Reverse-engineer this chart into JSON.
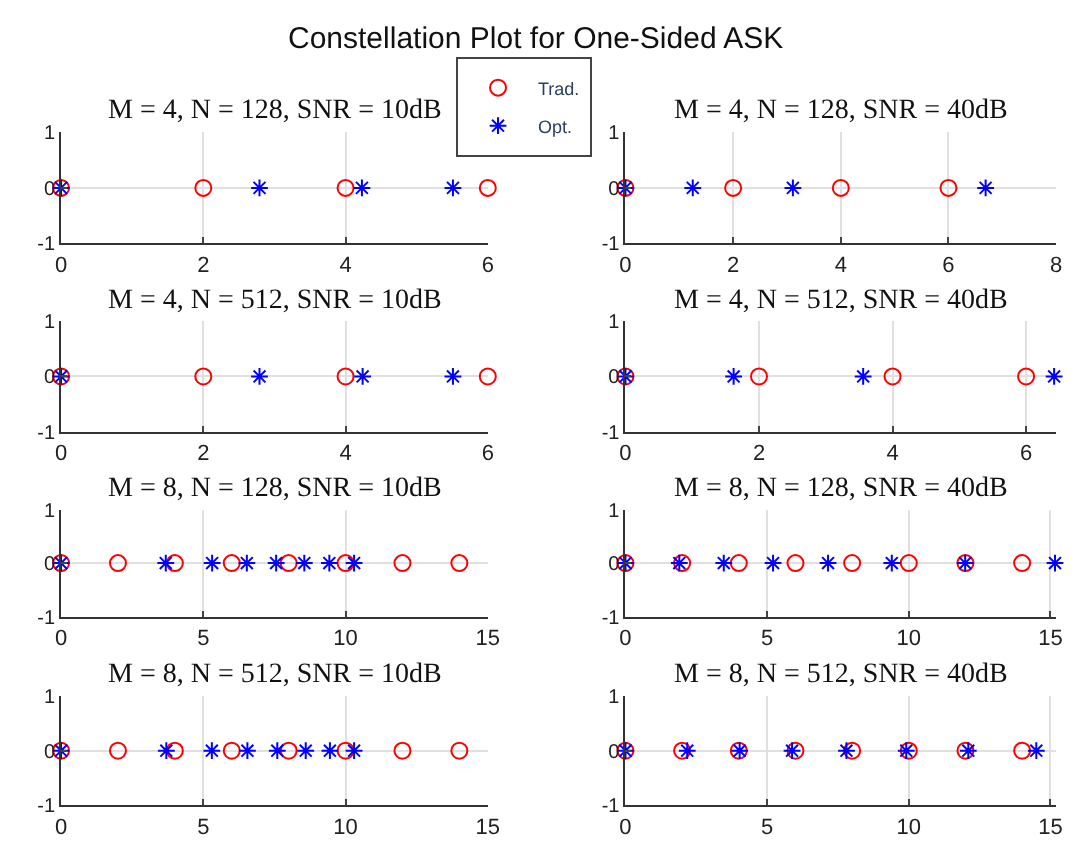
{
  "chart_data": [
    {
      "type": "scatter",
      "title": "M = 4, N = 128, SNR = 10dB",
      "annotations": [
        "Constellation Plot for One-Sided ASK"
      ],
      "xlim": [
        0,
        6
      ],
      "xticks": [
        0,
        2,
        4,
        6
      ],
      "ylim": [
        -1,
        1
      ],
      "yticks": [
        -1,
        0,
        1
      ],
      "grid": true,
      "legend": "top",
      "series": [
        {
          "name": "Trad.",
          "color": "#ff0000",
          "marker": "circle",
          "x": [
            0,
            2,
            4,
            6
          ],
          "values": [
            0,
            0,
            0,
            0
          ]
        },
        {
          "name": "Opt.",
          "color": "#0000ff",
          "marker": "cross",
          "x": [
            0,
            2.79,
            4.23,
            5.51
          ],
          "values": [
            0,
            0,
            0,
            0
          ]
        }
      ]
    },
    {
      "type": "scatter",
      "title": "M = 4, N = 128, SNR = 40dB",
      "xlim": [
        0,
        8
      ],
      "xticks": [
        0,
        2,
        4,
        6,
        8
      ],
      "ylim": [
        -1,
        1
      ],
      "yticks": [
        -1,
        0,
        1
      ],
      "grid": true,
      "series": [
        {
          "color": "#ff0000",
          "marker": "circle",
          "x": [
            0,
            2,
            4,
            6
          ],
          "values": [
            0,
            0,
            0,
            0
          ]
        },
        {
          "color": "#0000ff",
          "marker": "cross",
          "x": [
            0,
            1.25,
            3.11,
            6.69
          ],
          "values": [
            0,
            0,
            0,
            0
          ]
        }
      ]
    },
    {
      "type": "scatter",
      "title": "M = 4, N = 512, SNR = 10dB",
      "xlim": [
        0,
        6
      ],
      "xticks": [
        0,
        2,
        4,
        6
      ],
      "ylim": [
        -1,
        1
      ],
      "yticks": [
        -1,
        0,
        1
      ],
      "grid": true,
      "series": [
        {
          "color": "#ff0000",
          "marker": "circle",
          "x": [
            0,
            2,
            4,
            6
          ],
          "values": [
            0,
            0,
            0,
            0
          ]
        },
        {
          "color": "#0000ff",
          "marker": "cross",
          "x": [
            0,
            2.79,
            4.24,
            5.51
          ],
          "values": [
            0,
            0,
            0,
            0
          ]
        }
      ]
    },
    {
      "type": "scatter",
      "title": "M = 4, N = 512, SNR = 40dB",
      "xlim": [
        0,
        6.45
      ],
      "xticks": [
        0,
        2,
        4,
        6
      ],
      "ylim": [
        -1,
        1
      ],
      "yticks": [
        -1,
        0,
        1
      ],
      "grid": true,
      "series": [
        {
          "color": "#ff0000",
          "marker": "circle",
          "x": [
            0,
            2,
            4,
            6
          ],
          "values": [
            0,
            0,
            0,
            0
          ]
        },
        {
          "color": "#0000ff",
          "marker": "cross",
          "x": [
            0,
            1.62,
            3.56,
            6.42
          ],
          "values": [
            0,
            0,
            0,
            0
          ]
        }
      ]
    },
    {
      "type": "scatter",
      "title": "M = 8, N = 128, SNR = 10dB",
      "xlim": [
        0,
        15
      ],
      "xticks": [
        0,
        5,
        10,
        15
      ],
      "ylim": [
        -1,
        1
      ],
      "yticks": [
        -1,
        0,
        1
      ],
      "grid": true,
      "series": [
        {
          "color": "#ff0000",
          "marker": "circle",
          "x": [
            0,
            2,
            4,
            6,
            8,
            10,
            12,
            14
          ],
          "values": [
            0,
            0,
            0,
            0,
            0,
            0,
            0,
            0
          ]
        },
        {
          "color": "#0000ff",
          "marker": "cross",
          "x": [
            0,
            3.68,
            5.31,
            6.53,
            7.56,
            8.55,
            9.43,
            10.3
          ],
          "values": [
            0,
            0,
            0,
            0,
            0,
            0,
            0,
            0
          ]
        }
      ]
    },
    {
      "type": "scatter",
      "title": "M = 8, N = 128, SNR = 40dB",
      "xlim": [
        0,
        15.2
      ],
      "xticks": [
        0,
        5,
        10,
        15
      ],
      "ylim": [
        -1,
        1
      ],
      "yticks": [
        -1,
        0,
        1
      ],
      "grid": true,
      "series": [
        {
          "color": "#ff0000",
          "marker": "circle",
          "x": [
            0,
            2,
            4,
            6,
            8,
            10,
            12,
            14
          ],
          "values": [
            0,
            0,
            0,
            0,
            0,
            0,
            0,
            0
          ]
        },
        {
          "color": "#0000ff",
          "marker": "cross",
          "x": [
            0,
            1.9,
            3.47,
            5.21,
            7.15,
            9.4,
            11.99,
            15.16
          ],
          "values": [
            0,
            0,
            0,
            0,
            0,
            0,
            0,
            0
          ]
        }
      ]
    },
    {
      "type": "scatter",
      "title": "M = 8, N = 512, SNR = 10dB",
      "xlim": [
        0,
        15
      ],
      "xticks": [
        0,
        5,
        10,
        15
      ],
      "ylim": [
        -1,
        1
      ],
      "yticks": [
        -1,
        0,
        1
      ],
      "grid": true,
      "series": [
        {
          "color": "#ff0000",
          "marker": "circle",
          "x": [
            0,
            2,
            4,
            6,
            8,
            10,
            12,
            14
          ],
          "values": [
            0,
            0,
            0,
            0,
            0,
            0,
            0,
            0
          ]
        },
        {
          "color": "#0000ff",
          "marker": "cross",
          "x": [
            0,
            3.7,
            5.3,
            6.55,
            7.6,
            8.6,
            9.45,
            10.3
          ],
          "values": [
            0,
            0,
            0,
            0,
            0,
            0,
            0,
            0
          ]
        }
      ]
    },
    {
      "type": "scatter",
      "title": "M = 8, N = 512, SNR = 40dB",
      "xlim": [
        0,
        15.2
      ],
      "xticks": [
        0,
        5,
        10,
        15
      ],
      "ylim": [
        -1,
        1
      ],
      "yticks": [
        -1,
        0,
        1
      ],
      "grid": true,
      "series": [
        {
          "color": "#ff0000",
          "marker": "circle",
          "x": [
            0,
            2,
            4,
            6,
            8,
            10,
            12,
            14
          ],
          "values": [
            0,
            0,
            0,
            0,
            0,
            0,
            0,
            0
          ]
        },
        {
          "color": "#0000ff",
          "marker": "cross",
          "x": [
            0,
            2.18,
            4.03,
            5.88,
            7.8,
            9.91,
            12.1,
            14.5
          ],
          "values": [
            0,
            0,
            0,
            0,
            0,
            0,
            0,
            0
          ]
        }
      ]
    }
  ]
}
